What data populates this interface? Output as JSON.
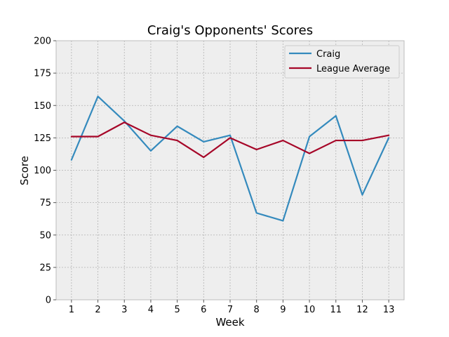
{
  "chart_data": {
    "type": "line",
    "title": "Craig's Opponents' Scores",
    "xlabel": "Week",
    "ylabel": "Score",
    "x": [
      1,
      2,
      3,
      4,
      5,
      6,
      7,
      8,
      9,
      10,
      11,
      12,
      13
    ],
    "ylim": [
      0,
      200
    ],
    "yticks": [
      0,
      25,
      50,
      75,
      100,
      125,
      150,
      175,
      200
    ],
    "grid": true,
    "legend_position": "top-right",
    "series": [
      {
        "name": "Craig",
        "color": "#348ABD",
        "values": [
          108,
          157,
          138,
          115,
          134,
          122,
          127,
          67,
          61,
          126,
          142,
          81,
          125
        ]
      },
      {
        "name": "League Average",
        "color": "#A60628",
        "values": [
          126,
          126,
          137,
          127,
          123,
          110,
          125,
          116,
          123,
          113,
          123,
          123,
          127
        ]
      }
    ]
  }
}
